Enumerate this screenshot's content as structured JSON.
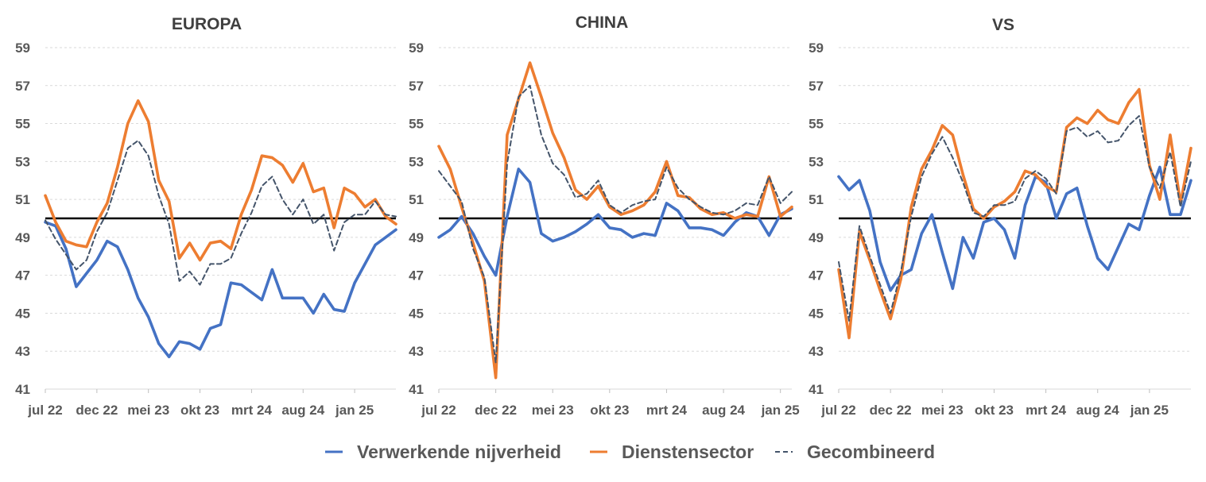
{
  "legend": [
    {
      "name": "Verwerkende nijverheid",
      "color": "#4472C4",
      "dash": false
    },
    {
      "name": "Dienstensector",
      "color": "#ED7D31",
      "dash": false
    },
    {
      "name": "Gecombineerd",
      "color": "#44546A",
      "dash": true
    }
  ],
  "chart_data": [
    {
      "type": "line",
      "title": "EUROPA",
      "ylim": [
        41,
        59
      ],
      "yticks": [
        41,
        43,
        45,
        47,
        49,
        51,
        53,
        55,
        57,
        59
      ],
      "xticks": [
        "jul 22",
        "dec 22",
        "mei 23",
        "okt 23",
        "mrt 24",
        "aug 24",
        "jan 25"
      ],
      "tick_indices": [
        0,
        5,
        10,
        15,
        20,
        25,
        30
      ],
      "reference_line": 50,
      "series": [
        {
          "name": "Verwerkende nijverheid",
          "color": "#4472C4",
          "values": [
            49.8,
            49.6,
            48.4,
            46.4,
            47.1,
            47.8,
            48.8,
            48.5,
            47.3,
            45.8,
            44.8,
            43.4,
            42.7,
            43.5,
            43.4,
            43.1,
            44.2,
            44.4,
            46.6,
            46.5,
            46.1,
            45.7,
            47.3,
            45.8,
            45.8,
            45.8,
            45.0,
            46.0,
            45.2,
            45.1,
            46.6,
            47.6,
            48.6,
            49.0,
            49.4
          ]
        },
        {
          "name": "Dienstensector",
          "color": "#ED7D31",
          "values": [
            51.2,
            49.8,
            48.8,
            48.6,
            48.5,
            49.8,
            50.8,
            52.7,
            55.0,
            56.2,
            55.1,
            52.0,
            50.9,
            47.9,
            48.7,
            47.8,
            48.7,
            48.8,
            48.4,
            50.2,
            51.5,
            53.3,
            53.2,
            52.8,
            51.9,
            52.9,
            51.4,
            51.6,
            49.5,
            51.6,
            51.3,
            50.6,
            51.0,
            50.1,
            49.7
          ]
        },
        {
          "name": "Gecombineerd",
          "color": "#44546A",
          "dash": true,
          "values": [
            49.9,
            48.9,
            48.1,
            47.3,
            47.8,
            49.3,
            50.3,
            52.0,
            53.7,
            54.1,
            53.3,
            51.2,
            49.7,
            46.7,
            47.2,
            46.5,
            47.6,
            47.6,
            47.9,
            49.2,
            50.3,
            51.7,
            52.2,
            51.0,
            50.2,
            51.0,
            49.7,
            50.2,
            48.3,
            49.8,
            50.2,
            50.2,
            50.9,
            50.2,
            50.1
          ]
        }
      ]
    },
    {
      "type": "line",
      "title": "CHINA",
      "ylim": [
        41,
        59
      ],
      "yticks": [
        41,
        43,
        45,
        47,
        49,
        51,
        53,
        55,
        57,
        59
      ],
      "xticks": [
        "jul 22",
        "dec 22",
        "mei 23",
        "okt 23",
        "mrt 24",
        "aug 24",
        "jan 25"
      ],
      "tick_indices": [
        0,
        5,
        10,
        15,
        20,
        25,
        30
      ],
      "reference_line": 50,
      "series": [
        {
          "name": "Verwerkende nijverheid",
          "color": "#4472C4",
          "values": [
            49.0,
            49.4,
            50.1,
            49.2,
            48.0,
            47.0,
            50.1,
            52.6,
            51.9,
            49.2,
            48.8,
            49.0,
            49.3,
            49.7,
            50.2,
            49.5,
            49.4,
            49.0,
            49.2,
            49.1,
            50.8,
            50.4,
            49.5,
            49.5,
            49.4,
            49.1,
            49.8,
            50.3,
            50.1,
            49.1,
            50.2,
            50.5
          ]
        },
        {
          "name": "Dienstensector",
          "color": "#ED7D31",
          "values": [
            53.8,
            52.6,
            50.6,
            48.7,
            46.7,
            41.6,
            54.4,
            56.3,
            58.2,
            56.4,
            54.5,
            53.2,
            51.5,
            51.0,
            51.7,
            50.6,
            50.2,
            50.4,
            50.7,
            51.4,
            53.0,
            51.2,
            51.1,
            50.5,
            50.2,
            50.3,
            50.0,
            50.2,
            50.1,
            52.2,
            50.1,
            50.6
          ]
        },
        {
          "name": "Gecombineerd",
          "color": "#44546A",
          "dash": true,
          "values": [
            52.5,
            51.7,
            50.9,
            48.4,
            46.9,
            42.4,
            52.9,
            56.4,
            57.0,
            54.4,
            52.9,
            52.3,
            51.1,
            51.3,
            52.0,
            50.7,
            50.3,
            50.7,
            50.9,
            51.0,
            52.7,
            51.6,
            51.0,
            50.6,
            50.3,
            50.2,
            50.4,
            50.8,
            50.7,
            52.2,
            50.8,
            51.4
          ]
        }
      ]
    },
    {
      "type": "line",
      "title": "VS",
      "ylim": [
        41,
        59
      ],
      "yticks": [
        41,
        43,
        45,
        47,
        49,
        51,
        53,
        55,
        57,
        59
      ],
      "xticks": [
        "jul 22",
        "dec 22",
        "mei 23",
        "okt 23",
        "mrt 24",
        "aug 24",
        "jan 25"
      ],
      "tick_indices": [
        0,
        5,
        10,
        15,
        20,
        25,
        30
      ],
      "reference_line": 50,
      "series": [
        {
          "name": "Verwerkende nijverheid",
          "color": "#4472C4",
          "values": [
            52.2,
            51.5,
            52.0,
            50.4,
            47.7,
            46.2,
            47.0,
            47.3,
            49.2,
            50.2,
            48.2,
            46.3,
            49.0,
            47.9,
            49.8,
            50.0,
            49.4,
            47.9,
            50.7,
            52.2,
            51.9,
            50.0,
            51.3,
            51.6,
            49.6,
            47.9,
            47.3,
            48.5,
            49.7,
            49.4,
            51.2,
            52.7,
            50.2,
            50.2,
            52.0
          ]
        },
        {
          "name": "Dienstensector",
          "color": "#ED7D31",
          "values": [
            47.3,
            43.7,
            49.3,
            47.8,
            46.2,
            44.7,
            46.8,
            50.6,
            52.6,
            53.6,
            54.9,
            54.4,
            52.3,
            50.5,
            50.0,
            50.6,
            50.9,
            51.4,
            52.5,
            52.3,
            51.7,
            51.4,
            54.8,
            55.3,
            55.0,
            55.7,
            55.2,
            55.0,
            56.1,
            56.8,
            52.8,
            51.0,
            54.4,
            50.8,
            53.7
          ]
        },
        {
          "name": "Gecombineerd",
          "color": "#44546A",
          "dash": true,
          "values": [
            47.7,
            44.6,
            49.6,
            48.0,
            46.5,
            45.0,
            47.2,
            50.1,
            52.2,
            53.4,
            54.3,
            53.2,
            51.9,
            50.3,
            50.1,
            50.7,
            50.7,
            50.9,
            52.1,
            52.5,
            52.1,
            51.3,
            54.6,
            54.8,
            54.3,
            54.6,
            54.0,
            54.1,
            54.9,
            55.4,
            52.7,
            51.6,
            53.5,
            50.6,
            53.0
          ]
        }
      ]
    }
  ]
}
